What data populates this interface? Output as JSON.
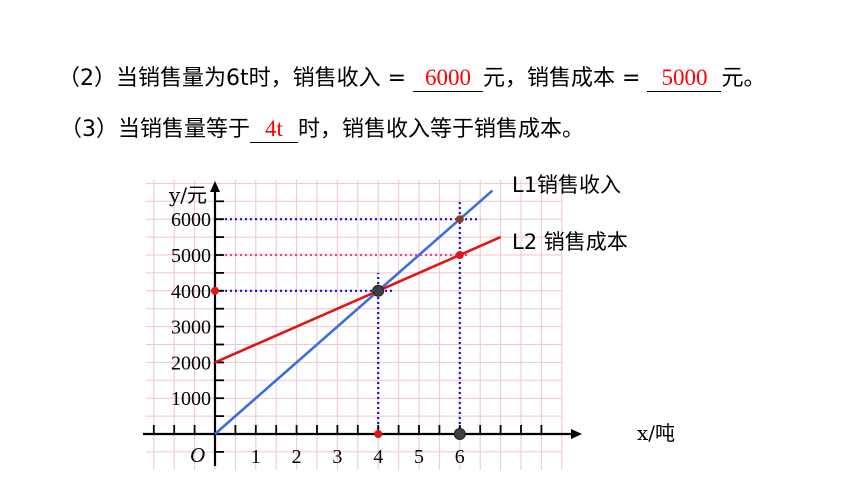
{
  "questions": {
    "q2": {
      "prefix": "（2）当销售量为6t时，销售收入 = ",
      "answer_revenue": "6000",
      "mid": "元，销售成本 = ",
      "answer_cost": "5000",
      "suffix": "元。"
    },
    "q3": {
      "prefix": "（3）当销售量等于",
      "answer": "4t",
      "suffix": "时，销售收入等于销售成本。"
    }
  },
  "chart_data": {
    "type": "line",
    "ylabel": "y/元",
    "xlabel": "x/吨",
    "origin_label": "O",
    "x_ticks_labeled": [
      1,
      2,
      3,
      4,
      5,
      6
    ],
    "y_ticks_labeled": [
      1000,
      2000,
      3000,
      4000,
      5000,
      6000
    ],
    "xlim": [
      -1.7,
      8.5
    ],
    "ylim": [
      -1000,
      7100
    ],
    "grid": true,
    "series": [
      {
        "name": "L1销售收入",
        "color": "#3b6fe0",
        "points": [
          [
            0,
            0
          ],
          [
            6.8,
            6800
          ]
        ]
      },
      {
        "name": "L2 销售成本",
        "color": "#e01515",
        "points": [
          [
            0,
            2000
          ],
          [
            7,
            5500
          ]
        ]
      }
    ],
    "marked_points": [
      {
        "x": 4,
        "y": 4000,
        "color": "#404040"
      },
      {
        "x": 6,
        "y": 6000,
        "color": "#8a4020"
      },
      {
        "x": 6,
        "y": 5000,
        "color": "#e01515"
      },
      {
        "x": 0,
        "y": 4000,
        "color": "#e01515"
      },
      {
        "x": 4,
        "y": 0,
        "color": "#e01515"
      },
      {
        "x": 6,
        "y": 0,
        "color": "#404040"
      }
    ],
    "guide_lines": [
      {
        "from": [
          0,
          6000
        ],
        "to": [
          6.5,
          6000
        ],
        "color": "#1010e0"
      },
      {
        "from": [
          0,
          5000
        ],
        "to": [
          6.2,
          5000
        ],
        "color": "#ff3a9a"
      },
      {
        "from": [
          0,
          4000
        ],
        "to": [
          4.4,
          4000
        ],
        "color": "#1010e0"
      },
      {
        "from": [
          4,
          0
        ],
        "to": [
          4,
          4500
        ],
        "color": "#1010e0"
      },
      {
        "from": [
          6,
          0
        ],
        "to": [
          6,
          6500
        ],
        "color": "#1010e0"
      }
    ]
  }
}
